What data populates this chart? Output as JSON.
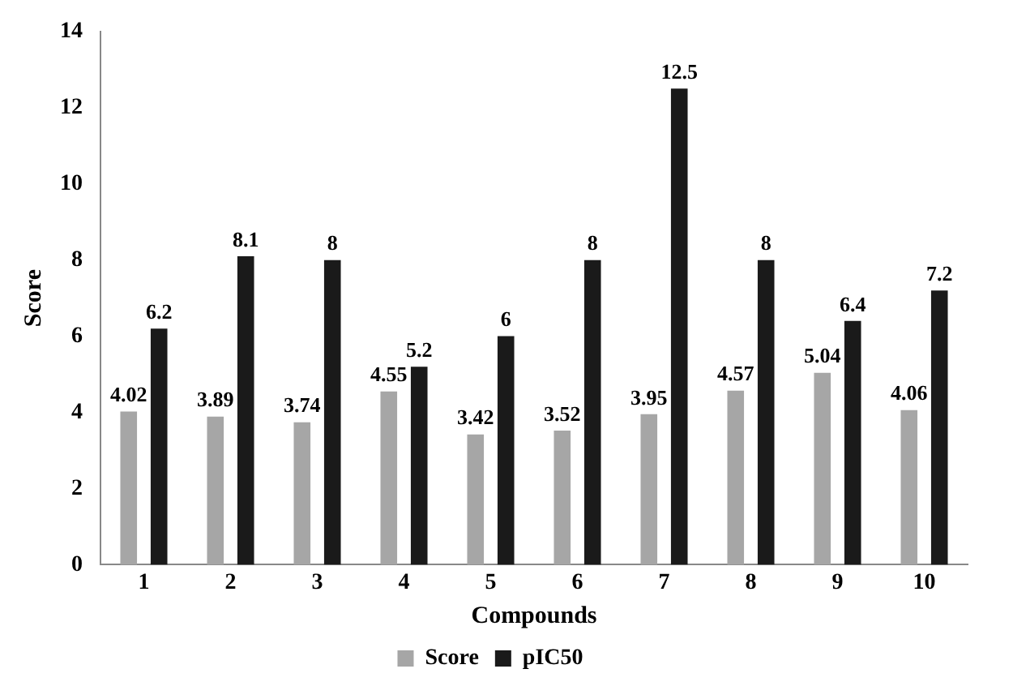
{
  "chart_data": {
    "type": "bar",
    "xlabel": "Compounds",
    "ylabel": "Score",
    "categories": [
      "1",
      "2",
      "3",
      "4",
      "5",
      "6",
      "7",
      "8",
      "9",
      "10"
    ],
    "series": [
      {
        "name": "Score",
        "color": "#a6a6a6",
        "values": [
          4.02,
          3.89,
          3.74,
          4.55,
          3.42,
          3.52,
          3.95,
          4.57,
          5.04,
          4.06
        ]
      },
      {
        "name": "pIC50",
        "color": "#1a1a1a",
        "values": [
          6.2,
          8.1,
          8,
          5.2,
          6,
          8,
          12.5,
          8,
          6.4,
          7.2
        ]
      }
    ],
    "ylim": [
      0,
      14
    ],
    "yticks": [
      0,
      2,
      4,
      6,
      8,
      10,
      12,
      14
    ],
    "grid": false,
    "legend": "bottom",
    "data_labels": true
  }
}
